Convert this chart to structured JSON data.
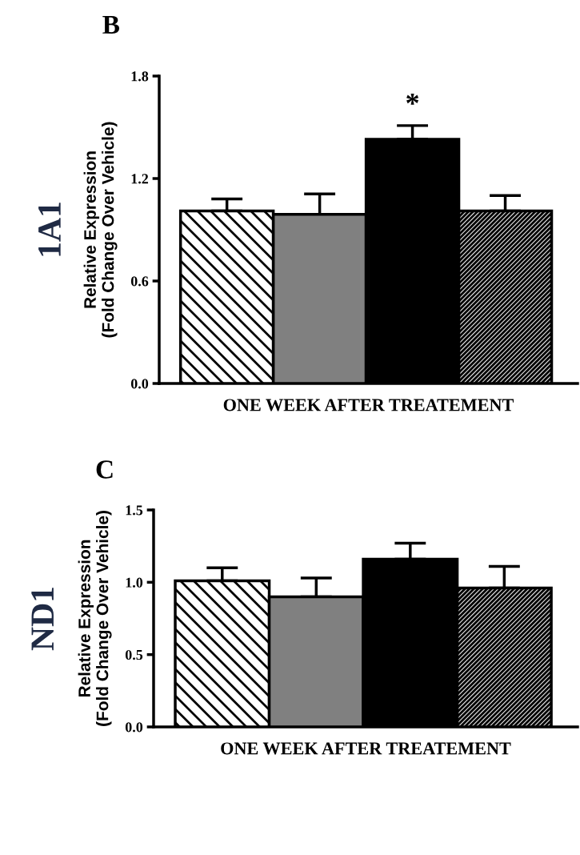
{
  "chart_data": [
    {
      "type": "bar",
      "title": "B",
      "ylabel": "Relative Expression\n(Fold Change Over Vehicle)",
      "xlabel": "ONE WEEK AFTER TREATEMENT",
      "categories": [
        null,
        null,
        null,
        null
      ],
      "values": [
        1.01,
        0.99,
        1.43,
        1.01
      ],
      "errors": [
        [
          1.01,
          1.08
        ],
        [
          0.99,
          1.11
        ],
        [
          1.43,
          1.51
        ],
        [
          1.01,
          1.1
        ]
      ],
      "colors": [
        "#ffffff",
        "#808080",
        "#000000",
        "#e0e0e0"
      ],
      "ylim": [
        0,
        1.8
      ],
      "yticks": [
        {
          "value": 0,
          "label": "0.0"
        },
        {
          "value": 0.6,
          "label": "0.6"
        },
        {
          "value": 1.2,
          "label": "1.2"
        },
        {
          "value": 1.8,
          "label": "1.8"
        }
      ],
      "annotations": [
        "1A1",
        "*"
      ]
    },
    {
      "type": "bar",
      "title": "C",
      "ylabel": "Relative Expression\n(Fold Change Over Vehicle)",
      "xlabel": "ONE WEEK AFTER TREATEMENT",
      "categories": [
        null,
        null,
        null,
        null
      ],
      "values": [
        1.01,
        0.9,
        1.16,
        0.96
      ],
      "errors": [
        [
          1.01,
          1.1
        ],
        [
          0.9,
          1.03
        ],
        [
          1.16,
          1.27
        ],
        [
          0.96,
          1.11
        ]
      ],
      "colors": [
        "#ffffff",
        "#808080",
        "#000000",
        "#e0e0e0"
      ],
      "ylim": [
        0,
        1.5
      ],
      "yticks": [
        {
          "value": 0,
          "label": "0.0"
        },
        {
          "value": 0.5,
          "label": "0.5"
        },
        {
          "value": 1.0,
          "label": "1.0"
        },
        {
          "value": 1.5,
          "label": "1.5"
        }
      ],
      "annotations": [
        "ND1"
      ]
    }
  ]
}
